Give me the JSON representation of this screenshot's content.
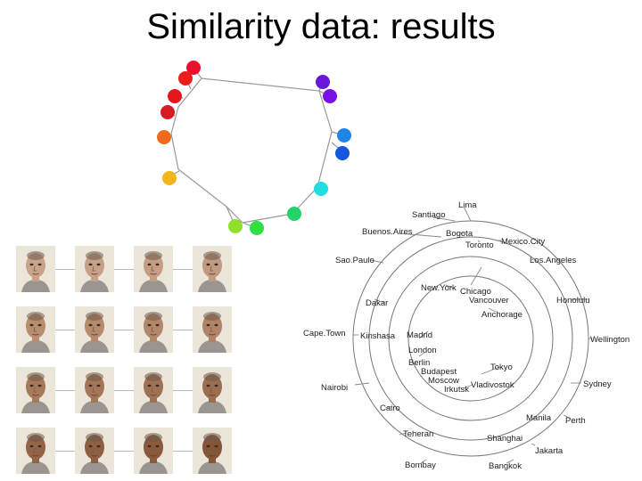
{
  "slide": {
    "title": "Similarity data: results"
  },
  "color_circle": {
    "colors": [
      "#e8102a",
      "#ec1d1d",
      "#e5161b",
      "#d81a24",
      "#ef6a1c",
      "#f4b51c",
      "#8fe02a",
      "#2ee040",
      "#22d26a",
      "#22dede",
      "#1f86e8",
      "#1557e0",
      "#6a18d8",
      "#7a10e8"
    ]
  },
  "city_tree": {
    "cities": [
      "Lima",
      "Santiago",
      "Buenos.Aires",
      "Bogota",
      "Toronto",
      "Mexico.City",
      "Sao.Paulo",
      "Los.Angeles",
      "New.York",
      "Chicago",
      "Vancouver",
      "Honolulu",
      "Dakar",
      "Anchorage",
      "Cape.Town",
      "Kinshasa",
      "Madrid",
      "Wellington",
      "London",
      "Berlin",
      "Tokyo",
      "Budapest",
      "Moscow",
      "Vladivostok",
      "Sydney",
      "Nairobi",
      "Irkutsk",
      "Cairo",
      "Manila",
      "Perth",
      "Teheran",
      "Shanghai",
      "Jakarta",
      "Bombay",
      "Bangkok"
    ]
  },
  "face_grid": {
    "rows": 4,
    "cols": 4,
    "skin_tones": [
      [
        "#c9a48a",
        "#c6a088",
        "#c49d84",
        "#c29a82"
      ],
      [
        "#b98d70",
        "#b68a6d",
        "#b3876a",
        "#b08467"
      ],
      [
        "#a87a5c",
        "#a47658",
        "#a07254",
        "#9c6e50"
      ],
      [
        "#946447",
        "#8f5f42",
        "#8a5a3d",
        "#855538"
      ]
    ]
  }
}
